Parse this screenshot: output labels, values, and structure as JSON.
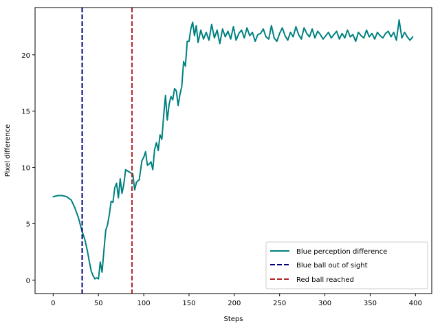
{
  "chart_data": {
    "type": "line",
    "xlabel": "Steps",
    "ylabel": "Pixel difference",
    "xlim": [
      -20,
      418
    ],
    "ylim": [
      -1.2,
      24.2
    ],
    "xticks": [
      0,
      50,
      100,
      150,
      200,
      250,
      300,
      350,
      400
    ],
    "yticks": [
      0,
      5,
      10,
      15,
      20
    ],
    "grid": false,
    "legend_position": "lower right",
    "series": [
      {
        "name": "Blue perception difference",
        "color": "#008080",
        "style": "solid",
        "x": [
          0,
          5,
          10,
          15,
          20,
          24,
          28,
          32,
          35,
          38,
          40,
          42,
          44,
          46,
          48,
          50,
          52,
          54,
          56,
          58,
          60,
          62,
          64,
          66,
          68,
          70,
          72,
          74,
          76,
          78,
          80,
          82,
          84,
          86,
          88,
          90,
          92,
          95,
          98,
          100,
          102,
          104,
          106,
          108,
          110,
          112,
          114,
          116,
          118,
          120,
          122,
          124,
          126,
          128,
          130,
          132,
          134,
          136,
          138,
          140,
          142,
          144,
          146,
          148,
          150,
          152,
          154,
          156,
          158,
          160,
          163,
          166,
          169,
          172,
          175,
          178,
          181,
          184,
          187,
          190,
          193,
          196,
          199,
          202,
          205,
          208,
          211,
          214,
          217,
          220,
          223,
          226,
          229,
          232,
          235,
          238,
          241,
          244,
          247,
          250,
          253,
          256,
          259,
          262,
          265,
          268,
          271,
          274,
          277,
          280,
          283,
          286,
          289,
          292,
          295,
          298,
          301,
          304,
          307,
          310,
          313,
          316,
          319,
          322,
          325,
          328,
          331,
          334,
          337,
          340,
          343,
          346,
          349,
          352,
          355,
          358,
          361,
          364,
          367,
          370,
          373,
          376,
          379,
          382,
          385,
          388,
          391,
          394,
          397
        ],
        "y": [
          7.4,
          7.5,
          7.5,
          7.4,
          7.1,
          6.4,
          5.5,
          4.3,
          3.6,
          2.5,
          1.6,
          0.8,
          0.4,
          0.1,
          0.2,
          0.1,
          1.6,
          0.7,
          2.6,
          4.4,
          4.9,
          5.8,
          7.0,
          6.9,
          8.2,
          8.6,
          7.3,
          9.0,
          7.7,
          8.5,
          9.8,
          9.7,
          9.6,
          9.5,
          9.4,
          8.0,
          8.7,
          8.9,
          10.6,
          10.9,
          11.4,
          10.2,
          10.3,
          10.5,
          9.8,
          11.6,
          12.2,
          11.5,
          12.9,
          12.5,
          14.6,
          16.4,
          14.2,
          15.6,
          16.3,
          16.0,
          17.0,
          16.8,
          15.5,
          16.5,
          17.2,
          19.4,
          19.0,
          21.2,
          21.2,
          22.3,
          22.9,
          21.7,
          22.6,
          21.1,
          22.2,
          21.4,
          22.0,
          21.3,
          22.7,
          21.5,
          22.2,
          21.0,
          22.3,
          21.6,
          22.1,
          21.4,
          22.5,
          21.3,
          21.9,
          22.2,
          21.5,
          22.4,
          21.7,
          22.0,
          21.2,
          21.8,
          21.9,
          22.3,
          21.6,
          21.4,
          22.6,
          21.5,
          21.2,
          21.9,
          22.4,
          21.7,
          21.3,
          22.0,
          21.6,
          22.5,
          21.8,
          21.4,
          22.4,
          21.9,
          21.6,
          22.3,
          21.5,
          22.1,
          21.8,
          21.4,
          21.7,
          22.0,
          21.5,
          21.8,
          22.1,
          21.4,
          21.9,
          21.5,
          22.2,
          21.6,
          21.8,
          21.2,
          22.0,
          21.7,
          21.5,
          22.2,
          21.6,
          21.9,
          21.4,
          22.0,
          21.7,
          21.5,
          21.9,
          22.1,
          21.6,
          22.0,
          21.3,
          23.1,
          21.5,
          22.0,
          21.6,
          21.3,
          21.6
        ]
      },
      {
        "name": "Blue ball out of sight",
        "color": "#00007f",
        "style": "dashed",
        "vline_x": 32
      },
      {
        "name": "Red ball reached",
        "color": "#b22222",
        "style": "dashed",
        "vline_x": 87
      }
    ]
  }
}
